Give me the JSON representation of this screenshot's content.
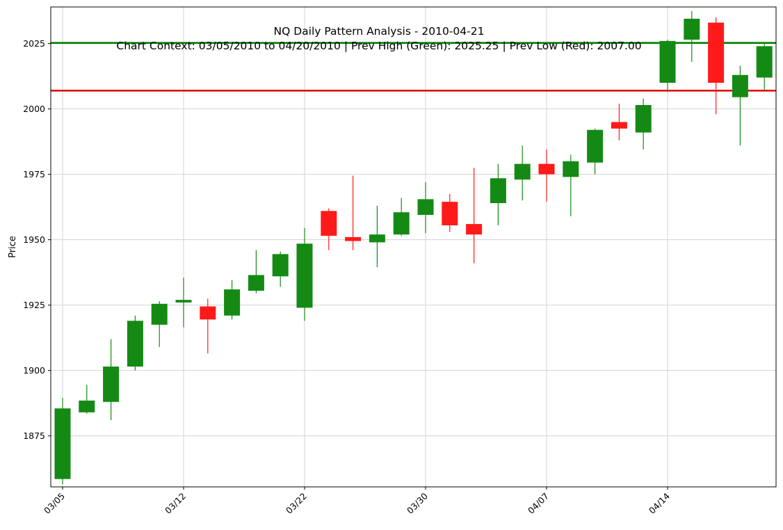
{
  "chart_data": {
    "type": "candlestick",
    "title": "NQ Daily Pattern Analysis - 2010-04-21",
    "subtitle": "Chart Context: 03/05/2010 to 04/20/2010 | Prev High (Green): 2025.25 | Prev Low (Red): 2007.00",
    "xlabel": "",
    "ylabel": "Price",
    "ylim": [
      1855.5,
      2039
    ],
    "yticks": [
      1875,
      1900,
      1925,
      1950,
      1975,
      2000,
      2025
    ],
    "grid": true,
    "up_color": "#148a14",
    "down_color": "#ff1a1a",
    "xtick_labels": [
      {
        "index": 0,
        "label": "03/05"
      },
      {
        "index": 5,
        "label": "03/12"
      },
      {
        "index": 10,
        "label": "03/22"
      },
      {
        "index": 15,
        "label": "03/30"
      },
      {
        "index": 20,
        "label": "04/07"
      },
      {
        "index": 25,
        "label": "04/14"
      }
    ],
    "candles": [
      {
        "open": 1858.5,
        "high": 1889.5,
        "low": 1856.5,
        "close": 1885.5
      },
      {
        "open": 1884.0,
        "high": 1894.5,
        "low": 1883.5,
        "close": 1888.5
      },
      {
        "open": 1888.0,
        "high": 1912.0,
        "low": 1881.0,
        "close": 1901.5
      },
      {
        "open": 1901.5,
        "high": 1921.0,
        "low": 1900.0,
        "close": 1919.0
      },
      {
        "open": 1917.5,
        "high": 1926.5,
        "low": 1909.0,
        "close": 1925.5
      },
      {
        "open": 1926.0,
        "high": 1935.5,
        "low": 1916.5,
        "close": 1927.0
      },
      {
        "open": 1924.5,
        "high": 1927.5,
        "low": 1906.5,
        "close": 1919.5
      },
      {
        "open": 1921.0,
        "high": 1934.5,
        "low": 1919.5,
        "close": 1931.0
      },
      {
        "open": 1930.5,
        "high": 1946.0,
        "low": 1929.5,
        "close": 1936.5
      },
      {
        "open": 1936.0,
        "high": 1945.5,
        "low": 1932.0,
        "close": 1944.5
      },
      {
        "open": 1924.0,
        "high": 1954.5,
        "low": 1919.0,
        "close": 1948.5
      },
      {
        "open": 1961.0,
        "high": 1962.0,
        "low": 1946.0,
        "close": 1951.5
      },
      {
        "open": 1951.0,
        "high": 1974.5,
        "low": 1946.0,
        "close": 1949.5
      },
      {
        "open": 1949.0,
        "high": 1963.0,
        "low": 1939.5,
        "close": 1952.0
      },
      {
        "open": 1952.0,
        "high": 1966.0,
        "low": 1951.5,
        "close": 1960.5
      },
      {
        "open": 1959.5,
        "high": 1972.0,
        "low": 1952.5,
        "close": 1965.5
      },
      {
        "open": 1964.5,
        "high": 1967.5,
        "low": 1953.0,
        "close": 1955.5
      },
      {
        "open": 1956.0,
        "high": 1977.5,
        "low": 1941.0,
        "close": 1952.0
      },
      {
        "open": 1964.0,
        "high": 1979.0,
        "low": 1955.5,
        "close": 1973.5
      },
      {
        "open": 1973.0,
        "high": 1986.0,
        "low": 1965.0,
        "close": 1979.0
      },
      {
        "open": 1979.0,
        "high": 1984.5,
        "low": 1964.5,
        "close": 1975.0
      },
      {
        "open": 1974.0,
        "high": 1982.5,
        "low": 1959.0,
        "close": 1980.0
      },
      {
        "open": 1979.5,
        "high": 1992.5,
        "low": 1975.0,
        "close": 1992.0
      },
      {
        "open": 1995.0,
        "high": 2002.0,
        "low": 1988.0,
        "close": 1992.5
      },
      {
        "open": 1991.0,
        "high": 2004.0,
        "low": 1984.5,
        "close": 2001.5
      },
      {
        "open": 2010.0,
        "high": 2026.5,
        "low": 2006.5,
        "close": 2026.0
      },
      {
        "open": 2026.5,
        "high": 2037.5,
        "low": 2018.0,
        "close": 2034.5
      },
      {
        "open": 2033.0,
        "high": 2035.0,
        "low": 1998.0,
        "close": 2010.0
      },
      {
        "open": 2004.5,
        "high": 2016.5,
        "low": 1986.0,
        "close": 2013.0
      },
      {
        "open": 2012.0,
        "high": 2025.0,
        "low": 2007.0,
        "close": 2024.0
      }
    ],
    "reference_lines": [
      {
        "value": 2025.25,
        "color": "#008000"
      },
      {
        "value": 2007.0,
        "color": "#e01010"
      }
    ]
  }
}
